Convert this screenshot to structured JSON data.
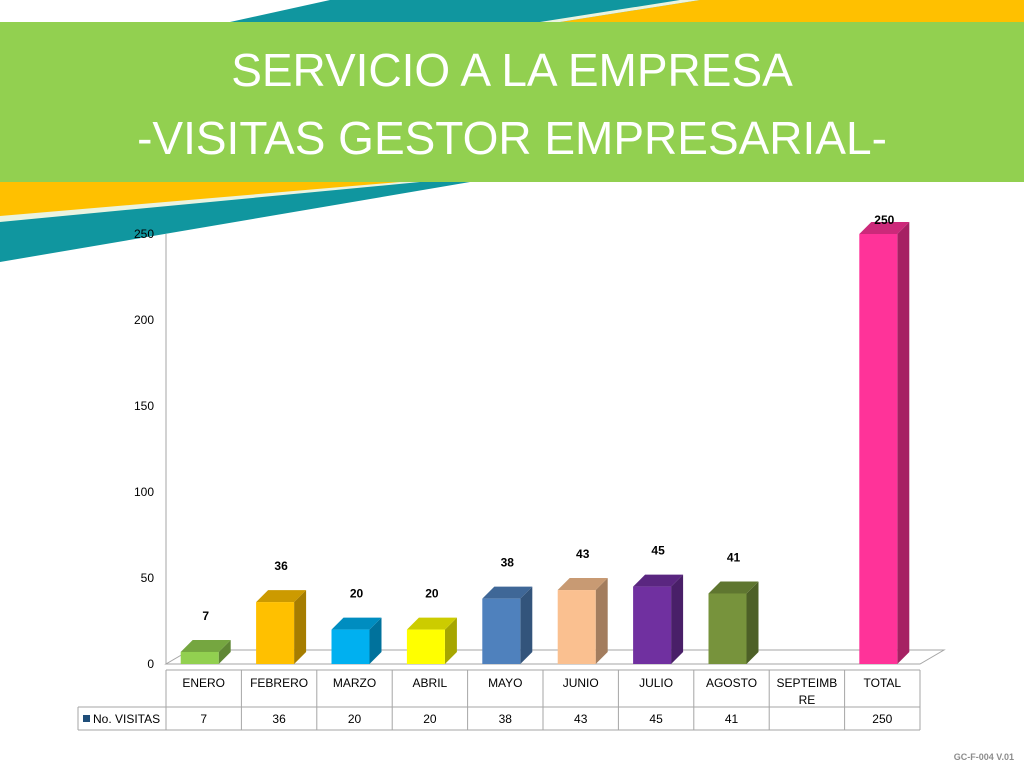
{
  "header": {
    "title_line1": "SERVICIO A LA EMPRESA",
    "title_line2": "-VISITAS GESTOR EMPRESARIAL-"
  },
  "colors": {
    "banner": "#92d050",
    "deco_teal": "#10969f",
    "deco_orange": "#ffc000",
    "deco_stripe": "#eaf3e0"
  },
  "chart_data": {
    "type": "bar",
    "title": "",
    "xlabel": "",
    "ylabel": "",
    "ylim": [
      0,
      250
    ],
    "yticks": [
      0,
      50,
      100,
      150,
      200,
      250
    ],
    "categories": [
      "ENERO",
      "FEBRERO",
      "MARZO",
      "ABRIL",
      "MAYO",
      "JUNIO",
      "JULIO",
      "AGOSTO",
      "SEPTEIMB RE",
      "TOTAL"
    ],
    "category_lines": [
      [
        "ENERO"
      ],
      [
        "FEBRERO"
      ],
      [
        "MARZO"
      ],
      [
        "ABRIL"
      ],
      [
        "MAYO"
      ],
      [
        "JUNIO"
      ],
      [
        "JULIO"
      ],
      [
        "AGOSTO"
      ],
      [
        "SEPTEIMB",
        "RE"
      ],
      [
        "TOTAL"
      ]
    ],
    "series": [
      {
        "name": "No. VISITAS",
        "values": [
          7,
          36,
          20,
          20,
          38,
          43,
          45,
          41,
          null,
          250
        ]
      }
    ],
    "bar_colors": [
      "#92d050",
      "#ffc000",
      "#00b0f0",
      "#ffff00",
      "#4f81bd",
      "#fac090",
      "#7030a0",
      "#77933c",
      "#cccccc",
      "#ff3399"
    ],
    "data_table": true,
    "legend": "table-left",
    "grid": false
  },
  "footer": {
    "code": "GC-F-004 V.01"
  }
}
